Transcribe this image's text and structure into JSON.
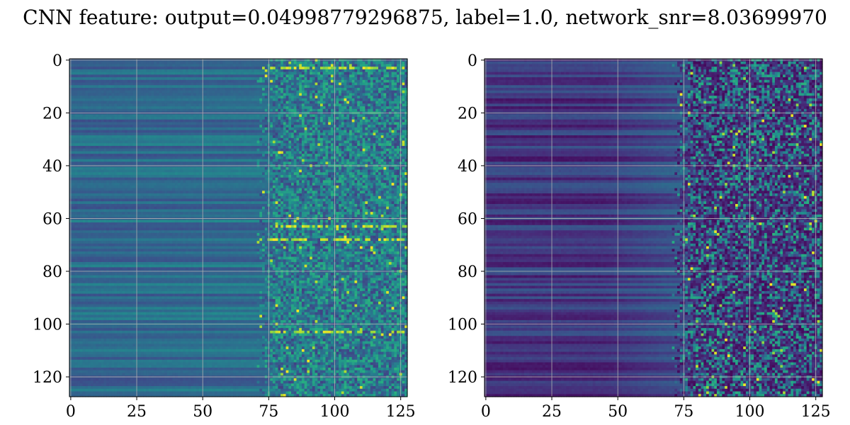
{
  "figure": {
    "title": "CNN feature: output=0.04998779296875, label=1.0, network_snr=8.03699970"
  },
  "chart_data": [
    {
      "type": "heatmap",
      "colormap": "viridis",
      "shape": [
        128,
        128
      ],
      "xlim": [
        0,
        127
      ],
      "ylim": [
        127,
        0
      ],
      "x_ticks": [
        0,
        25,
        50,
        75,
        100,
        125
      ],
      "y_ticks": [
        0,
        20,
        40,
        60,
        80,
        100,
        120
      ],
      "grid": true,
      "description": "Left panel: horizontal banding in columns 0-75 (medium teal-blue), noisy speckled region in columns 75-127 with bright yellow spots near rows 3, 63, 68, 103"
    },
    {
      "type": "heatmap",
      "colormap": "viridis",
      "shape": [
        128,
        128
      ],
      "xlim": [
        0,
        127
      ],
      "ylim": [
        127,
        0
      ],
      "x_ticks": [
        0,
        25,
        50,
        75,
        100,
        125
      ],
      "y_ticks": [
        0,
        20,
        40,
        60,
        80,
        100,
        120
      ],
      "grid": true,
      "description": "Right panel: darker purple banding in columns 0-75, sparse noisy speckle with scattered bright points in columns 75-127"
    }
  ]
}
